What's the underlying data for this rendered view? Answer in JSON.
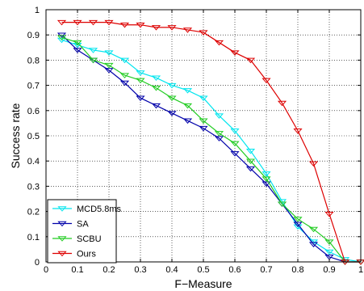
{
  "chart_data": {
    "type": "line",
    "title": "",
    "xlabel": "F−Measure",
    "ylabel": "Success rate",
    "xlim": [
      0,
      1
    ],
    "ylim": [
      0,
      1
    ],
    "grid": true,
    "legend_position": "bottom-left",
    "x_ticks": [
      "0",
      "0.1",
      "0.2",
      "0.3",
      "0.4",
      "0.5",
      "0.6",
      "0.7",
      "0.8",
      "0.9",
      "1"
    ],
    "y_ticks": [
      "0",
      "0.1",
      "0.2",
      "0.3",
      "0.4",
      "0.5",
      "0.6",
      "0.7",
      "0.8",
      "0.9",
      "1"
    ],
    "x": [
      0.05,
      0.1,
      0.15,
      0.2,
      0.25,
      0.3,
      0.35,
      0.4,
      0.45,
      0.5,
      0.55,
      0.6,
      0.65,
      0.7,
      0.75,
      0.8,
      0.85,
      0.9,
      0.95,
      1.0
    ],
    "series": [
      {
        "name": "MCD5.8ms",
        "color": "#00e5ee",
        "marker": "triangle-down",
        "values": [
          0.88,
          0.86,
          0.84,
          0.83,
          0.8,
          0.75,
          0.73,
          0.7,
          0.68,
          0.65,
          0.58,
          0.52,
          0.44,
          0.35,
          0.24,
          0.14,
          0.08,
          0.04,
          0.01,
          0.0
        ]
      },
      {
        "name": "SA",
        "color": "#0000aa",
        "marker": "triangle-down",
        "values": [
          0.9,
          0.84,
          0.8,
          0.76,
          0.71,
          0.65,
          0.62,
          0.59,
          0.56,
          0.53,
          0.49,
          0.43,
          0.37,
          0.31,
          0.23,
          0.15,
          0.07,
          0.02,
          0.0,
          0.0
        ]
      },
      {
        "name": "SCBU",
        "color": "#22cc22",
        "marker": "triangle-down",
        "values": [
          0.89,
          0.87,
          0.8,
          0.78,
          0.74,
          0.72,
          0.69,
          0.65,
          0.62,
          0.56,
          0.51,
          0.47,
          0.4,
          0.33,
          0.23,
          0.17,
          0.13,
          0.08,
          0.0,
          0.0
        ]
      },
      {
        "name": "Ours",
        "color": "#dd0000",
        "marker": "triangle-down",
        "values": [
          0.95,
          0.95,
          0.95,
          0.95,
          0.94,
          0.94,
          0.93,
          0.93,
          0.92,
          0.91,
          0.87,
          0.83,
          0.8,
          0.72,
          0.63,
          0.52,
          0.39,
          0.19,
          0.0,
          0.0
        ]
      }
    ]
  }
}
